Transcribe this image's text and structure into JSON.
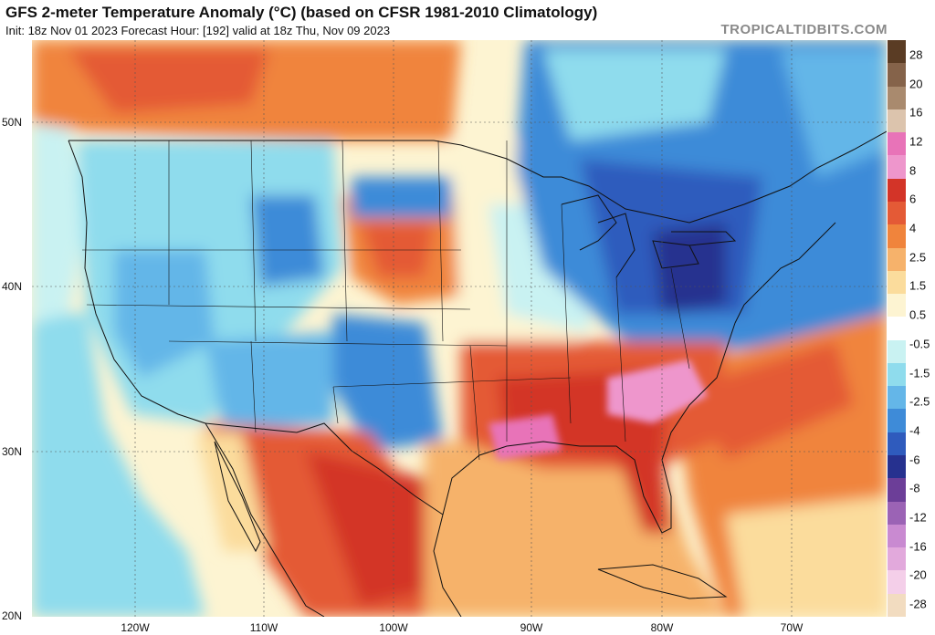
{
  "header": {
    "title": "GFS 2-meter Temperature Anomaly (°C) (based on CFSR 1981-2010 Climatology)",
    "subtitle": "Init: 18z Nov 01 2023   Forecast Hour: [192]   valid at 18z Thu, Nov 09 2023",
    "brand": "TROPICALTIDBITS.COM"
  },
  "axes": {
    "lat_labels": [
      "50N",
      "40N",
      "30N",
      "20N"
    ],
    "lon_labels": [
      "120W",
      "110W",
      "100W",
      "90W",
      "80W",
      "70W"
    ]
  },
  "colorbar": {
    "labels": [
      "28",
      "20",
      "16",
      "12",
      "8",
      "6",
      "4",
      "2.5",
      "1.5",
      "0.5",
      "-0.5",
      "-1.5",
      "-2.5",
      "-4",
      "-6",
      "-8",
      "-12",
      "-16",
      "-20",
      "-28"
    ],
    "colors": [
      "#5a3c24",
      "#85634a",
      "#a98a6e",
      "#dcc4ad",
      "#e873b8",
      "#ee96cc",
      "#d33428",
      "#e45a36",
      "#f0843c",
      "#f6b26b",
      "#fbdc9c",
      "#fdf4d2",
      "#ffffff",
      "#c9f2f2",
      "#8fdced",
      "#64b6e8",
      "#3e8bd8",
      "#2f5bbd",
      "#26318f",
      "#6c3e98",
      "#9b63b5",
      "#c98ad1",
      "#e2a9dc",
      "#f4cfe9",
      "#f2dcc0"
    ]
  },
  "regions": [
    {
      "name": "canada-west-warm",
      "color": "#f0843c"
    },
    {
      "name": "northeast-cold",
      "color": "#3e8bd8"
    },
    {
      "name": "great-lakes-cold",
      "color": "#2f5bbd"
    },
    {
      "name": "southeast-warm",
      "color": "#d33428"
    },
    {
      "name": "carolina-hot",
      "color": "#ee96cc"
    },
    {
      "name": "gulf-warm",
      "color": "#f6b26b"
    },
    {
      "name": "atlantic-warm",
      "color": "#f0843c"
    },
    {
      "name": "plains-warm",
      "color": "#e45a36"
    },
    {
      "name": "southwest-cold",
      "color": "#64b6e8"
    },
    {
      "name": "texas-cold",
      "color": "#3e8bd8"
    },
    {
      "name": "mexico-warm",
      "color": "#d33428"
    },
    {
      "name": "pacific-cool",
      "color": "#8fdced"
    }
  ]
}
